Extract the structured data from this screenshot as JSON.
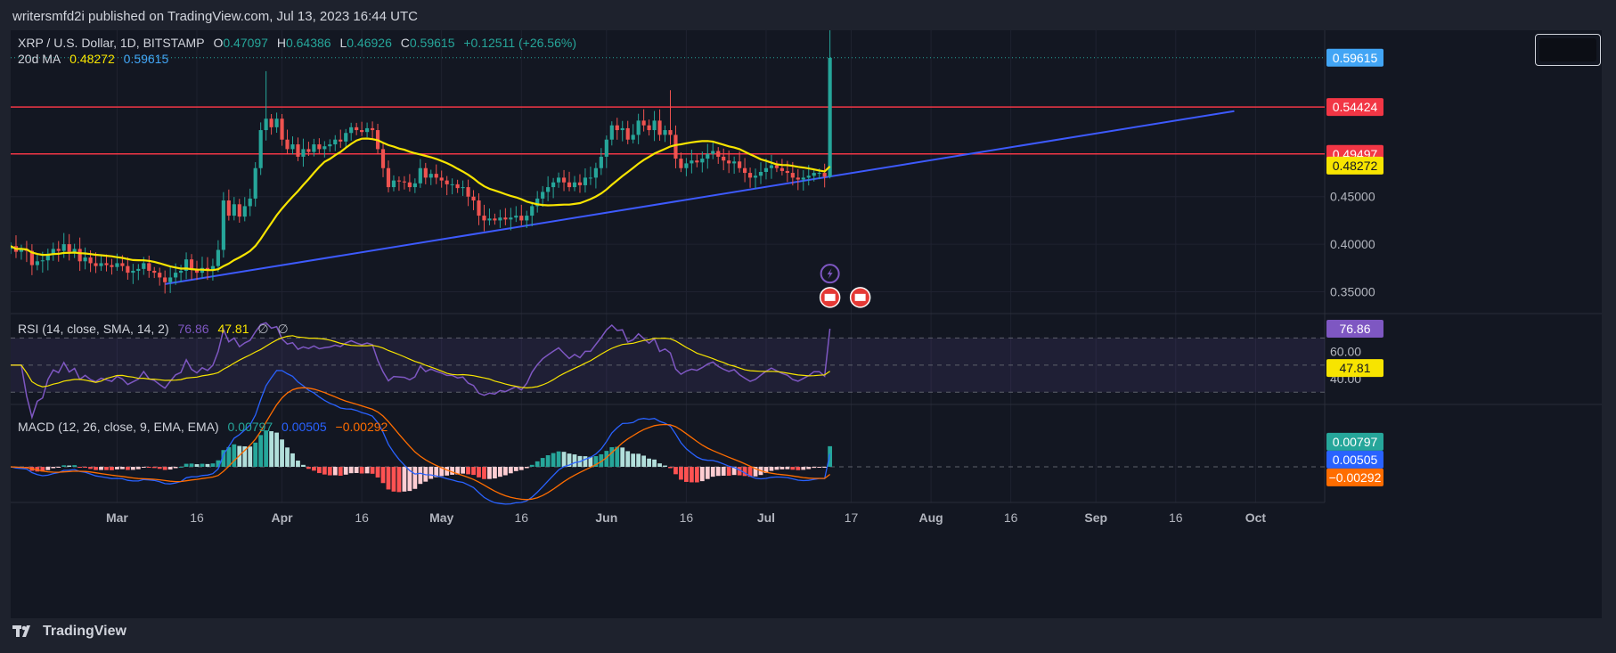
{
  "header": {
    "publisher_line": "writersmfd2i published on TradingView.com, Jul 13, 2023 16:44 UTC"
  },
  "legend": {
    "symbol": "XRP / U.S. Dollar, 1D, BITSTAMP",
    "o_label": "O",
    "o_value": "0.47097",
    "h_label": "H",
    "h_value": "0.64386",
    "l_label": "L",
    "l_value": "0.46926",
    "c_label": "C",
    "c_value": "0.59615",
    "change": "+0.12511 (+26.56%)",
    "ma_label": "20d MA",
    "ma_value": "0.48272",
    "ma_value2": "0.59615"
  },
  "rsi_legend": {
    "label": "RSI (14, close, SMA, 14, 2)",
    "rsi": "76.86",
    "sma": "47.81",
    "e1": "∅",
    "e2": "∅"
  },
  "macd_legend": {
    "label": "MACD (12, 26, close, 9, EMA, EMA)",
    "hist": "0.00797",
    "macd": "0.00505",
    "signal": "−0.00292"
  },
  "footer": {
    "brand": "TradingView"
  },
  "colors": {
    "bg": "#131722",
    "up": "#26a69a",
    "down": "#ef5350",
    "ma": "#f7e400",
    "trend": "#2962ff",
    "res": "#f23645",
    "rsi": "#7e57c2",
    "macd": "#2962ff",
    "signal": "#ff6d00"
  },
  "chart_data": {
    "type": "candlestick",
    "symbol": "XRP / U.S. Dollar, 1D, BITSTAMP",
    "price_ticks": [
      "0.35000",
      "0.40000",
      "0.45000"
    ],
    "price_range": [
      0.327,
      0.625
    ],
    "x_ticks": [
      "Mar",
      "16",
      "Apr",
      "16",
      "May",
      "16",
      "Jun",
      "16",
      "Jul",
      "17",
      "Aug",
      "16",
      "Sep",
      "16",
      "Oct"
    ],
    "x_tick_dates": [
      "2023-03-01",
      "2023-03-16",
      "2023-04-01",
      "2023-04-16",
      "2023-05-01",
      "2023-05-16",
      "2023-06-01",
      "2023-06-16",
      "2023-07-01",
      "2023-07-17",
      "2023-08-01",
      "2023-08-16",
      "2023-09-01",
      "2023-09-16",
      "2023-10-01"
    ],
    "x_range": [
      "2023-02-09",
      "2023-10-14"
    ],
    "horizontal_lines": [
      {
        "name": "resistance",
        "value": 0.54424,
        "label": "0.54424"
      },
      {
        "name": "support",
        "value": 0.49497,
        "label": "0.49497"
      }
    ],
    "trendline": {
      "start": [
        "2023-03-10",
        0.358
      ],
      "end": [
        "2023-09-27",
        0.54
      ]
    },
    "price_labels": [
      {
        "name": "close",
        "value": 0.59615,
        "label": "0.59615",
        "color": "#42a5f5"
      },
      {
        "name": "resistance",
        "value": 0.54424,
        "label": "0.54424",
        "color": "#f23645"
      },
      {
        "name": "support",
        "value": 0.49497,
        "label": "0.49497",
        "color": "#f23645"
      },
      {
        "name": "ma",
        "value": 0.48272,
        "label": "0.48272",
        "color": "#f7e400"
      }
    ],
    "closes": [
      [
        "2023-02-09",
        0.398
      ],
      [
        "2023-02-10",
        0.392
      ],
      [
        "2023-02-11",
        0.395
      ],
      [
        "2023-02-12",
        0.393
      ],
      [
        "2023-02-13",
        0.378
      ],
      [
        "2023-02-14",
        0.382
      ],
      [
        "2023-02-15",
        0.383
      ],
      [
        "2023-02-16",
        0.39
      ],
      [
        "2023-02-17",
        0.395
      ],
      [
        "2023-02-18",
        0.393
      ],
      [
        "2023-02-19",
        0.4
      ],
      [
        "2023-02-20",
        0.392
      ],
      [
        "2023-02-21",
        0.395
      ],
      [
        "2023-02-22",
        0.382
      ],
      [
        "2023-02-23",
        0.386
      ],
      [
        "2023-02-24",
        0.38
      ],
      [
        "2023-02-25",
        0.377
      ],
      [
        "2023-02-26",
        0.38
      ],
      [
        "2023-02-27",
        0.378
      ],
      [
        "2023-02-28",
        0.376
      ],
      [
        "2023-03-01",
        0.38
      ],
      [
        "2023-03-02",
        0.377
      ],
      [
        "2023-03-03",
        0.37
      ],
      [
        "2023-03-04",
        0.372
      ],
      [
        "2023-03-05",
        0.374
      ],
      [
        "2023-03-06",
        0.38
      ],
      [
        "2023-03-07",
        0.372
      ],
      [
        "2023-03-08",
        0.37
      ],
      [
        "2023-03-09",
        0.365
      ],
      [
        "2023-03-10",
        0.36
      ],
      [
        "2023-03-11",
        0.365
      ],
      [
        "2023-03-12",
        0.37
      ],
      [
        "2023-03-13",
        0.372
      ],
      [
        "2023-03-14",
        0.384
      ],
      [
        "2023-03-15",
        0.374
      ],
      [
        "2023-03-16",
        0.37
      ],
      [
        "2023-03-17",
        0.375
      ],
      [
        "2023-03-18",
        0.372
      ],
      [
        "2023-03-19",
        0.377
      ],
      [
        "2023-03-20",
        0.394
      ],
      [
        "2023-03-21",
        0.446
      ],
      [
        "2023-03-22",
        0.43
      ],
      [
        "2023-03-23",
        0.442
      ],
      [
        "2023-03-24",
        0.429
      ],
      [
        "2023-03-25",
        0.44
      ],
      [
        "2023-03-26",
        0.448
      ],
      [
        "2023-03-27",
        0.48
      ],
      [
        "2023-03-28",
        0.52
      ],
      [
        "2023-03-29",
        0.532
      ],
      [
        "2023-03-30",
        0.523
      ],
      [
        "2023-03-31",
        0.532
      ],
      [
        "2023-04-01",
        0.51
      ],
      [
        "2023-04-02",
        0.5
      ],
      [
        "2023-04-03",
        0.505
      ],
      [
        "2023-04-04",
        0.492
      ],
      [
        "2023-04-05",
        0.5
      ],
      [
        "2023-04-06",
        0.497
      ],
      [
        "2023-04-07",
        0.505
      ],
      [
        "2023-04-08",
        0.5
      ],
      [
        "2023-04-09",
        0.503
      ],
      [
        "2023-04-10",
        0.505
      ],
      [
        "2023-04-11",
        0.51
      ],
      [
        "2023-04-12",
        0.508
      ],
      [
        "2023-04-13",
        0.517
      ],
      [
        "2023-04-14",
        0.523
      ],
      [
        "2023-04-15",
        0.52
      ],
      [
        "2023-04-16",
        0.518
      ],
      [
        "2023-04-17",
        0.522
      ],
      [
        "2023-04-18",
        0.52
      ],
      [
        "2023-04-19",
        0.5
      ],
      [
        "2023-04-20",
        0.48
      ],
      [
        "2023-04-21",
        0.46
      ],
      [
        "2023-04-22",
        0.467
      ],
      [
        "2023-04-23",
        0.466
      ],
      [
        "2023-04-24",
        0.465
      ],
      [
        "2023-04-25",
        0.46
      ],
      [
        "2023-04-26",
        0.464
      ],
      [
        "2023-04-27",
        0.48
      ],
      [
        "2023-04-28",
        0.47
      ],
      [
        "2023-04-29",
        0.474
      ],
      [
        "2023-04-30",
        0.47
      ],
      [
        "2023-05-01",
        0.467
      ],
      [
        "2023-05-02",
        0.463
      ],
      [
        "2023-05-03",
        0.463
      ],
      [
        "2023-05-04",
        0.459
      ],
      [
        "2023-05-05",
        0.46
      ],
      [
        "2023-05-06",
        0.45
      ],
      [
        "2023-05-07",
        0.446
      ],
      [
        "2023-05-08",
        0.43
      ],
      [
        "2023-05-09",
        0.425
      ],
      [
        "2023-05-10",
        0.427
      ],
      [
        "2023-05-11",
        0.425
      ],
      [
        "2023-05-12",
        0.428
      ],
      [
        "2023-05-13",
        0.426
      ],
      [
        "2023-05-14",
        0.428
      ],
      [
        "2023-05-15",
        0.43
      ],
      [
        "2023-05-16",
        0.425
      ],
      [
        "2023-05-17",
        0.43
      ],
      [
        "2023-05-18",
        0.44
      ],
      [
        "2023-05-19",
        0.448
      ],
      [
        "2023-05-20",
        0.455
      ],
      [
        "2023-05-21",
        0.46
      ],
      [
        "2023-05-22",
        0.465
      ],
      [
        "2023-05-23",
        0.47
      ],
      [
        "2023-05-24",
        0.465
      ],
      [
        "2023-05-25",
        0.46
      ],
      [
        "2023-05-26",
        0.465
      ],
      [
        "2023-05-27",
        0.462
      ],
      [
        "2023-05-28",
        0.47
      ],
      [
        "2023-05-29",
        0.47
      ],
      [
        "2023-05-30",
        0.48
      ],
      [
        "2023-05-31",
        0.492
      ],
      [
        "2023-06-01",
        0.51
      ],
      [
        "2023-06-02",
        0.525
      ],
      [
        "2023-06-03",
        0.52
      ],
      [
        "2023-06-04",
        0.522
      ],
      [
        "2023-06-05",
        0.51
      ],
      [
        "2023-06-06",
        0.515
      ],
      [
        "2023-06-07",
        0.53
      ],
      [
        "2023-06-08",
        0.525
      ],
      [
        "2023-06-09",
        0.52
      ],
      [
        "2023-06-10",
        0.53
      ],
      [
        "2023-06-11",
        0.515
      ],
      [
        "2023-06-12",
        0.52
      ],
      [
        "2023-06-13",
        0.515
      ],
      [
        "2023-06-14",
        0.49
      ],
      [
        "2023-06-15",
        0.48
      ],
      [
        "2023-06-16",
        0.485
      ],
      [
        "2023-06-17",
        0.488
      ],
      [
        "2023-06-18",
        0.486
      ],
      [
        "2023-06-19",
        0.49
      ],
      [
        "2023-06-20",
        0.495
      ],
      [
        "2023-06-21",
        0.498
      ],
      [
        "2023-06-22",
        0.492
      ],
      [
        "2023-06-23",
        0.488
      ],
      [
        "2023-06-24",
        0.485
      ],
      [
        "2023-06-25",
        0.487
      ],
      [
        "2023-06-26",
        0.48
      ],
      [
        "2023-06-27",
        0.475
      ],
      [
        "2023-06-28",
        0.47
      ],
      [
        "2023-06-29",
        0.472
      ],
      [
        "2023-06-30",
        0.476
      ],
      [
        "2023-07-01",
        0.48
      ],
      [
        "2023-07-02",
        0.483
      ],
      [
        "2023-07-03",
        0.48
      ],
      [
        "2023-07-04",
        0.477
      ],
      [
        "2023-07-05",
        0.475
      ],
      [
        "2023-07-06",
        0.47
      ],
      [
        "2023-07-07",
        0.468
      ],
      [
        "2023-07-08",
        0.47
      ],
      [
        "2023-07-09",
        0.472
      ],
      [
        "2023-07-10",
        0.475
      ],
      [
        "2023-07-11",
        0.475
      ],
      [
        "2023-07-12",
        0.471
      ],
      [
        "2023-07-13",
        0.596
      ]
    ]
  }
}
